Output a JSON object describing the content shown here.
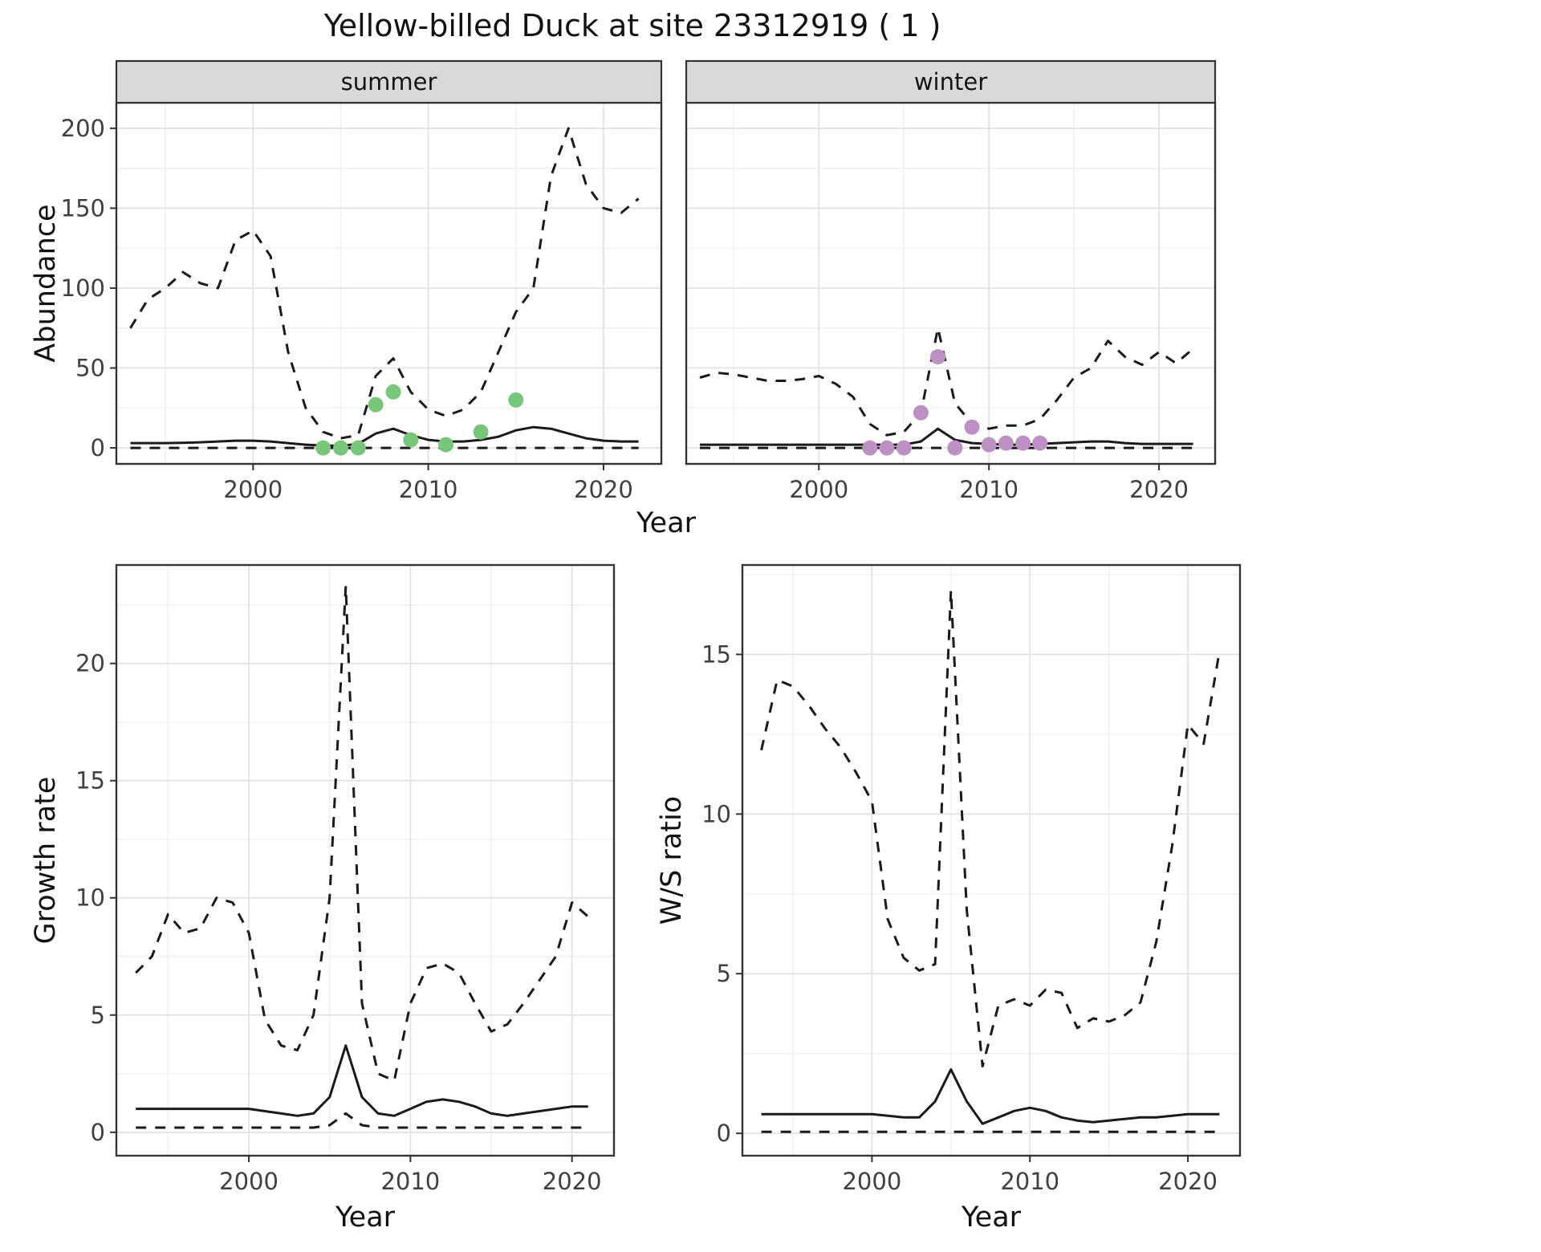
{
  "title": "Yellow-billed Duck at site 23312919 ( 1 )",
  "shared_axis": {
    "top_xlabel": "Year"
  },
  "style": {
    "line": "#1a1a1a",
    "grid_major": "#e2e2e2",
    "grid_minor": "#f0f0f0",
    "panel_border": "#333333",
    "strip_bg": "#d9d9d9",
    "tick_label": "#404040",
    "axis_title": "#111111",
    "summer_points": "#78c679",
    "winter_points": "#bd90c4"
  },
  "chart_data": [
    {
      "id": "abundance-summer",
      "type": "line",
      "facet_label": "summer",
      "ylabel": "Abundance",
      "xlabel": "",
      "xlim": [
        1992.2,
        2023.3
      ],
      "ylim": [
        -10,
        216
      ],
      "xticks": [
        2000,
        2010,
        2020
      ],
      "yticks": [
        0,
        50,
        100,
        150,
        200
      ],
      "x": [
        1993,
        1994,
        1995,
        1996,
        1997,
        1998,
        1999,
        2000,
        2001,
        2002,
        2003,
        2004,
        2005,
        2006,
        2007,
        2008,
        2009,
        2010,
        2011,
        2012,
        2013,
        2014,
        2015,
        2016,
        2017,
        2018,
        2019,
        2020,
        2021,
        2022
      ],
      "series": [
        {
          "name": "upper_ci",
          "style": "dashed",
          "values": [
            75,
            93,
            100,
            110,
            103,
            100,
            130,
            136,
            120,
            60,
            25,
            10,
            6,
            8,
            45,
            56,
            35,
            24,
            20,
            24,
            35,
            60,
            85,
            100,
            170,
            200,
            165,
            150,
            147,
            156
          ]
        },
        {
          "name": "median",
          "style": "solid",
          "values": [
            3,
            3,
            3,
            3.2,
            3.5,
            4,
            4.5,
            4.5,
            4,
            3,
            2,
            1.5,
            1.3,
            2.5,
            9,
            12,
            8,
            5,
            4,
            4,
            5,
            7,
            11,
            13,
            12,
            9,
            6,
            4.5,
            4,
            4
          ]
        },
        {
          "name": "lower_ci",
          "style": "dashed",
          "values": [
            0,
            0,
            0,
            0,
            0,
            0,
            0,
            0,
            0,
            0,
            0,
            0,
            0,
            0,
            0,
            0,
            0,
            0,
            0,
            0,
            0,
            0,
            0,
            0,
            0,
            0,
            0,
            0,
            0,
            0
          ]
        }
      ],
      "points": {
        "name": "observed-counts-summer",
        "color": "#78c679",
        "x": [
          2004,
          2005,
          2006,
          2007,
          2008,
          2009,
          2011,
          2013,
          2015
        ],
        "y": [
          0,
          0,
          0,
          27,
          35,
          5,
          2,
          10,
          30
        ]
      }
    },
    {
      "id": "abundance-winter",
      "type": "line",
      "facet_label": "winter",
      "ylabel": "",
      "xlabel": "",
      "xlim": [
        1992.2,
        2023.3
      ],
      "ylim": [
        -10,
        216
      ],
      "xticks": [
        2000,
        2010,
        2020
      ],
      "yticks": [
        0,
        50,
        100,
        150,
        200
      ],
      "x": [
        1993,
        1994,
        1995,
        1996,
        1997,
        1998,
        1999,
        2000,
        2001,
        2002,
        2003,
        2004,
        2005,
        2006,
        2007,
        2008,
        2009,
        2010,
        2011,
        2012,
        2013,
        2014,
        2015,
        2016,
        2017,
        2018,
        2019,
        2020,
        2021,
        2022
      ],
      "series": [
        {
          "name": "upper_ci",
          "style": "dashed",
          "values": [
            44,
            47,
            46,
            44,
            42,
            42,
            43,
            45,
            40,
            32,
            15,
            8,
            10,
            22,
            75,
            28,
            15,
            12,
            14,
            14,
            18,
            30,
            44,
            50,
            67,
            57,
            52,
            60,
            53,
            62
          ]
        },
        {
          "name": "median",
          "style": "solid",
          "values": [
            2,
            2,
            2,
            2,
            2,
            2,
            2,
            2,
            2,
            2,
            2,
            2,
            2,
            4,
            12,
            5,
            3,
            2.5,
            2,
            2,
            2.5,
            3,
            3.5,
            4,
            4,
            3,
            2.5,
            2.5,
            2.5,
            2.5
          ]
        },
        {
          "name": "lower_ci",
          "style": "dashed",
          "values": [
            0,
            0,
            0,
            0,
            0,
            0,
            0,
            0,
            0,
            0,
            0,
            0,
            0,
            0,
            0,
            0,
            0,
            0,
            0,
            0,
            0,
            0,
            0,
            0,
            0,
            0,
            0,
            0,
            0,
            0
          ]
        }
      ],
      "points": {
        "name": "observed-counts-winter",
        "color": "#bd90c4",
        "x": [
          2003,
          2004,
          2005,
          2006,
          2007,
          2008,
          2009,
          2010,
          2011,
          2012,
          2013
        ],
        "y": [
          0,
          0,
          0,
          22,
          57,
          0,
          13,
          2,
          3,
          3,
          3
        ]
      }
    },
    {
      "id": "growth-rate",
      "type": "line",
      "facet_label": null,
      "ylabel": "Growth rate",
      "xlabel": "Year",
      "xlim": [
        1991.8,
        2022.6
      ],
      "ylim": [
        -1,
        24.2
      ],
      "xticks": [
        2000,
        2010,
        2020
      ],
      "yticks": [
        0,
        5,
        10,
        15,
        20
      ],
      "x": [
        1993,
        1994,
        1995,
        1996,
        1997,
        1998,
        1999,
        2000,
        2001,
        2002,
        2003,
        2004,
        2005,
        2006,
        2007,
        2008,
        2009,
        2010,
        2011,
        2012,
        2013,
        2014,
        2015,
        2016,
        2017,
        2018,
        2019,
        2020,
        2021
      ],
      "series": [
        {
          "name": "upper_ci",
          "style": "dashed",
          "values": [
            6.8,
            7.5,
            9.3,
            8.5,
            8.7,
            10,
            9.8,
            8.5,
            4.8,
            3.7,
            3.5,
            5,
            10,
            23.3,
            5.5,
            2.5,
            2.2,
            5.5,
            7,
            7.2,
            6.8,
            5.5,
            4.3,
            4.6,
            5.5,
            6.5,
            7.5,
            9.8,
            9.2
          ]
        },
        {
          "name": "median",
          "style": "solid",
          "values": [
            1,
            1,
            1,
            1,
            1,
            1,
            1,
            1,
            0.9,
            0.8,
            0.7,
            0.8,
            1.5,
            3.7,
            1.5,
            0.8,
            0.7,
            1,
            1.3,
            1.4,
            1.3,
            1.1,
            0.8,
            0.7,
            0.8,
            0.9,
            1,
            1.1,
            1.1
          ]
        },
        {
          "name": "lower_ci",
          "style": "dashed",
          "values": [
            0.2,
            0.2,
            0.2,
            0.2,
            0.2,
            0.2,
            0.2,
            0.2,
            0.2,
            0.2,
            0.2,
            0.2,
            0.3,
            0.8,
            0.3,
            0.2,
            0.2,
            0.2,
            0.2,
            0.2,
            0.2,
            0.2,
            0.2,
            0.2,
            0.2,
            0.2,
            0.2,
            0.2,
            0.2
          ]
        }
      ],
      "points": null
    },
    {
      "id": "ws-ratio",
      "type": "line",
      "facet_label": null,
      "ylabel": "W/S ratio",
      "xlabel": "Year",
      "xlim": [
        1991.8,
        2023.3
      ],
      "ylim": [
        -0.7,
        17.8
      ],
      "xticks": [
        2000,
        2010,
        2020
      ],
      "yticks": [
        0,
        5,
        10,
        15
      ],
      "x": [
        1993,
        1994,
        1995,
        1996,
        1997,
        1998,
        1999,
        2000,
        2001,
        2002,
        2003,
        2004,
        2005,
        2006,
        2007,
        2008,
        2009,
        2010,
        2011,
        2012,
        2013,
        2014,
        2015,
        2016,
        2017,
        2018,
        2019,
        2020,
        2021,
        2022
      ],
      "series": [
        {
          "name": "upper_ci",
          "style": "dashed",
          "values": [
            12,
            14.2,
            14,
            13.4,
            12.7,
            12.1,
            11.3,
            10.4,
            6.7,
            5.5,
            5.1,
            5.3,
            17,
            7,
            2.1,
            4,
            4.2,
            4,
            4.5,
            4.4,
            3.3,
            3.6,
            3.5,
            3.7,
            4.1,
            6,
            9,
            12.8,
            12.2,
            15.1
          ]
        },
        {
          "name": "median",
          "style": "solid",
          "values": [
            0.6,
            0.6,
            0.6,
            0.6,
            0.6,
            0.6,
            0.6,
            0.6,
            0.55,
            0.5,
            0.5,
            1,
            2,
            1,
            0.3,
            0.5,
            0.7,
            0.8,
            0.7,
            0.5,
            0.4,
            0.35,
            0.4,
            0.45,
            0.5,
            0.5,
            0.55,
            0.6,
            0.6,
            0.6
          ]
        },
        {
          "name": "lower_ci",
          "style": "dashed",
          "values": [
            0.05,
            0.05,
            0.05,
            0.05,
            0.05,
            0.05,
            0.05,
            0.05,
            0.05,
            0.05,
            0.05,
            0.05,
            0.05,
            0.05,
            0.05,
            0.05,
            0.05,
            0.05,
            0.05,
            0.05,
            0.05,
            0.05,
            0.05,
            0.05,
            0.05,
            0.05,
            0.05,
            0.05,
            0.05,
            0.05
          ]
        }
      ],
      "points": null
    }
  ]
}
